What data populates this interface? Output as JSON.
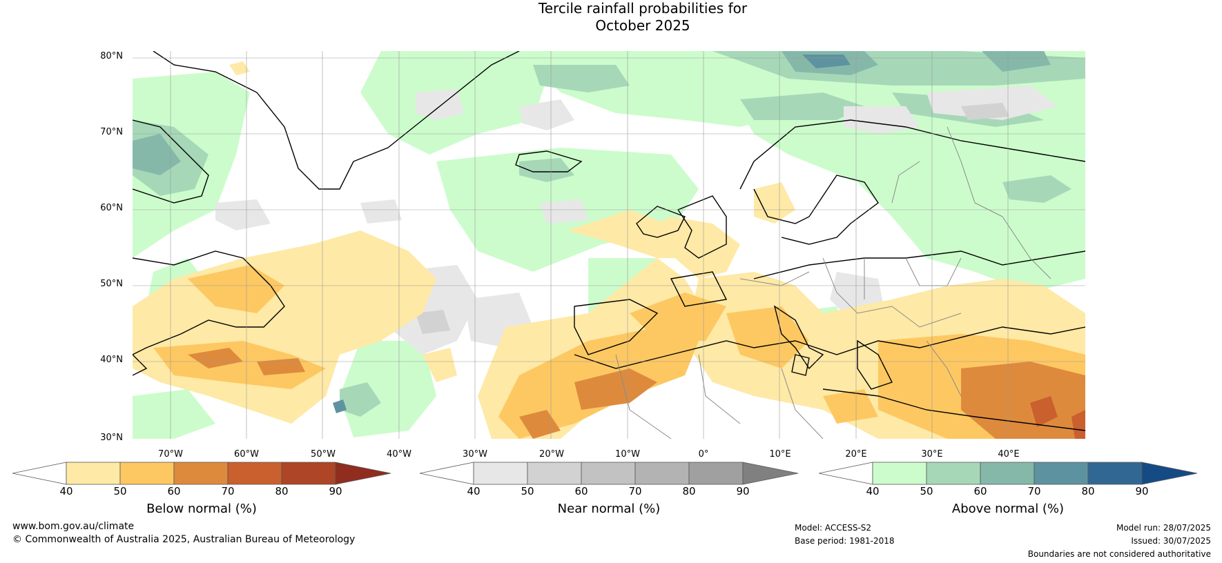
{
  "title_line1": "Tercile rainfall probabilities for",
  "title_line2": "October 2025",
  "lat_labels": [
    "80°N",
    "70°N",
    "60°N",
    "50°N",
    "40°N",
    "30°N"
  ],
  "lon_labels": [
    "70°W",
    "60°W",
    "50°W",
    "40°W",
    "30°W",
    "20°W",
    "10°W",
    "0°",
    "10°E",
    "20°E",
    "30°E",
    "40°E"
  ],
  "colorbars": [
    {
      "title": "Below normal (%)",
      "ticks": [
        "40",
        "50",
        "60",
        "70",
        "80",
        "90"
      ],
      "colors": [
        "#ffffff",
        "#fee9a6",
        "#fdc862",
        "#de8a3d",
        "#c9602e",
        "#ad4526",
        "#902d1f"
      ]
    },
    {
      "title": "Near normal (%)",
      "ticks": [
        "40",
        "50",
        "60",
        "70",
        "80",
        "90"
      ],
      "colors": [
        "#ffffff",
        "#e7e7e7",
        "#d2d2d2",
        "#c2c2c2",
        "#b3b3b3",
        "#a0a0a0",
        "#808080"
      ]
    },
    {
      "title": "Above normal (%)",
      "ticks": [
        "40",
        "50",
        "60",
        "70",
        "80",
        "90"
      ],
      "colors": [
        "#ffffff",
        "#ccfccc",
        "#a6d8b8",
        "#86b8aa",
        "#5d93a0",
        "#316893",
        "#154b85"
      ]
    }
  ],
  "footer": {
    "url": "www.bom.gov.au/climate",
    "copyright": "© Commonwealth of Australia 2025, Australian Bureau of Meteorology",
    "model": "Model: ACCESS-S2",
    "base_period": "Base period: 1981-2018",
    "model_run": "Model run: 28/07/2025",
    "issued": "Issued: 30/07/2025",
    "disclaimer": "Boundaries are not considered authoritative"
  }
}
